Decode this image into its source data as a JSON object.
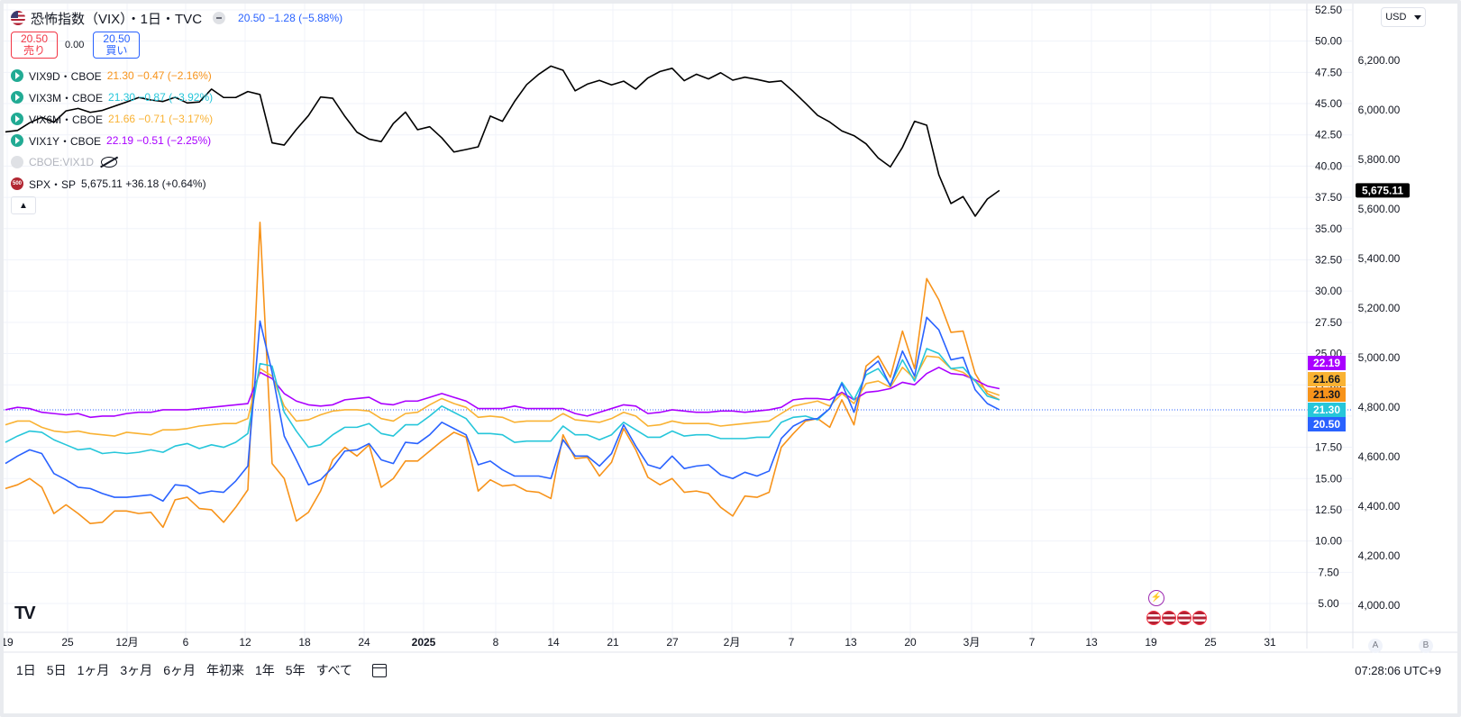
{
  "header": {
    "title": "恐怖指数（VIX）・1日・TVC",
    "last": "20.50",
    "change": "−1.28 (−5.88%)",
    "sell_price": "20.50",
    "sell_label": "売り",
    "spread": "0.00",
    "buy_price": "20.50",
    "buy_label": "買い"
  },
  "legend": [
    {
      "symbol": "VIX9D・CBOE",
      "value": "21.30",
      "change": "−0.47 (−2.16%)",
      "color": "#f7931a"
    },
    {
      "symbol": "VIX3M・CBOE",
      "value": "21.30",
      "change": "−0.87 (−3.92%)",
      "color": "#26c6da"
    },
    {
      "symbol": "VIX6M・CBOE",
      "value": "21.66",
      "change": "−0.71 (−3.17%)",
      "color": "#f9b233"
    },
    {
      "symbol": "VIX1Y・CBOE",
      "value": "22.19",
      "change": "−0.51 (−2.25%)",
      "color": "#aa00ff"
    }
  ],
  "hidden_series": {
    "symbol": "CBOE:VIX1D"
  },
  "spx_legend": {
    "badge": "500",
    "symbol": "SPX・SP",
    "value": "5,675.11",
    "change": "+36.18 (+0.64%)"
  },
  "currency": "USD",
  "timeframes": [
    "1日",
    "5日",
    "1ヶ月",
    "3ヶ月",
    "6ヶ月",
    "年初来",
    "1年",
    "5年",
    "すべて"
  ],
  "clock": "07:28:06 UTC+9",
  "scale_buttons": [
    "A",
    "B"
  ],
  "logo": "TV",
  "chart_data": {
    "type": "line",
    "x_tick_labels": [
      "19",
      "25",
      "12月",
      "6",
      "12",
      "18",
      "24",
      "2025",
      "8",
      "14",
      "21",
      "27",
      "2月",
      "7",
      "13",
      "20",
      "3月",
      "7",
      "13",
      "19",
      "25",
      "31"
    ],
    "right_axis": {
      "ylim": [
        4.5,
        52.5
      ],
      "ticks": [
        "52.50",
        "50.00",
        "47.50",
        "45.00",
        "42.50",
        "40.00",
        "37.50",
        "35.00",
        "32.50",
        "30.00",
        "27.50",
        "25.00",
        "22.50",
        "20.00",
        "17.50",
        "15.00",
        "12.50",
        "10.00",
        "7.50",
        "5.00"
      ]
    },
    "spx_axis": {
      "ylim": [
        3900,
        6350
      ],
      "ticks": [
        "6,200.00",
        "6,000.00",
        "5,800.00",
        "5,600.00",
        "5,400.00",
        "5,200.00",
        "5,000.00",
        "4,800.00",
        "4,600.00",
        "4,400.00",
        "4,200.00",
        "4,000.00"
      ],
      "last_label": "5,675.11"
    },
    "badges": [
      {
        "label": "22.19",
        "value": 22.19,
        "color": "#aa00ff"
      },
      {
        "label": "21.66",
        "value": 21.66,
        "color": "#f9b233"
      },
      {
        "label": "21.30",
        "value": 21.3,
        "color": "#f7931a"
      },
      {
        "label": "21.30",
        "value": 21.3,
        "color": "#26c6da"
      },
      {
        "label": "20.50",
        "value": 20.5,
        "color": "#2962ff"
      }
    ],
    "series": [
      {
        "key": "VIX9D",
        "color": "#f7931a",
        "values": [
          14.2,
          14.5,
          15.0,
          14.3,
          12.2,
          12.9,
          12.2,
          11.4,
          11.5,
          12.4,
          12.4,
          12.2,
          12.3,
          11.1,
          13.3,
          13.5,
          12.6,
          12.5,
          11.5,
          12.7,
          14.1,
          35.5,
          16.2,
          15.0,
          11.6,
          12.3,
          14.0,
          16.5,
          17.5,
          16.8,
          17.7,
          14.3,
          15.0,
          16.4,
          16.4,
          17.2,
          18.0,
          18.7,
          18.3,
          14.0,
          14.9,
          14.4,
          14.5,
          14.0,
          13.9,
          13.4,
          18.5,
          16.6,
          16.7,
          15.2,
          16.3,
          19.0,
          17.3,
          15.1,
          14.5,
          15.0,
          13.9,
          14.0,
          13.8,
          12.7,
          12.0,
          13.6,
          13.5,
          13.9,
          17.5,
          18.6,
          19.6,
          19.8,
          19.1,
          21.3,
          19.3,
          24.0,
          24.8,
          23.1,
          26.8,
          23.8,
          31.0,
          29.3,
          26.7,
          26.8,
          23.4,
          21.8,
          21.3
        ]
      },
      {
        "key": "VIX1Y",
        "color": "#aa00ff",
        "values": [
          20.5,
          20.7,
          20.6,
          20.3,
          20.2,
          20.1,
          20.2,
          19.9,
          20.0,
          20.0,
          20.2,
          20.3,
          20.3,
          20.5,
          20.5,
          20.5,
          20.6,
          20.7,
          20.8,
          20.9,
          21.0,
          23.5,
          23.0,
          21.8,
          21.2,
          20.9,
          20.8,
          20.9,
          21.3,
          21.4,
          21.5,
          21.0,
          20.9,
          21.2,
          21.2,
          21.5,
          21.8,
          21.5,
          21.2,
          20.6,
          20.6,
          20.6,
          20.8,
          20.6,
          20.6,
          20.6,
          20.6,
          20.2,
          20.0,
          20.3,
          20.6,
          20.9,
          20.8,
          20.2,
          20.3,
          20.5,
          20.4,
          20.3,
          20.3,
          20.4,
          20.4,
          20.3,
          20.4,
          20.5,
          20.7,
          21.3,
          21.4,
          21.4,
          21.3,
          21.9,
          21.3,
          21.9,
          22.0,
          22.2,
          22.7,
          22.5,
          23.4,
          23.9,
          23.4,
          23.3,
          22.9,
          22.4,
          22.19
        ]
      },
      {
        "key": "VIX6M",
        "color": "#f9b233",
        "values": [
          19.3,
          19.6,
          19.6,
          19.1,
          18.8,
          18.7,
          18.8,
          18.6,
          18.5,
          18.4,
          18.7,
          18.6,
          18.5,
          18.9,
          18.9,
          19.0,
          19.2,
          19.3,
          19.4,
          19.4,
          19.8,
          23.8,
          23.2,
          20.8,
          19.6,
          19.7,
          20.1,
          20.4,
          20.5,
          20.5,
          20.4,
          19.8,
          19.6,
          20.2,
          20.3,
          20.9,
          21.4,
          21.0,
          20.7,
          19.9,
          20.0,
          19.9,
          19.5,
          19.6,
          19.6,
          19.6,
          20.2,
          19.7,
          19.6,
          19.5,
          19.8,
          20.3,
          20.0,
          19.2,
          19.3,
          19.6,
          19.4,
          19.4,
          19.4,
          19.2,
          19.3,
          19.4,
          19.5,
          19.6,
          20.2,
          20.8,
          21.0,
          21.2,
          20.8,
          21.8,
          21.0,
          22.6,
          22.8,
          22.3,
          23.9,
          23.0,
          24.8,
          24.7,
          23.8,
          23.5,
          22.8,
          22.0,
          21.66
        ]
      },
      {
        "key": "VIX3M",
        "color": "#26c6da",
        "values": [
          17.9,
          18.4,
          18.8,
          18.7,
          18.1,
          17.7,
          17.3,
          17.4,
          17.0,
          17.1,
          17.0,
          17.1,
          17.3,
          17.1,
          17.6,
          17.8,
          17.4,
          17.7,
          17.5,
          17.9,
          18.6,
          24.2,
          24.0,
          20.3,
          18.8,
          17.5,
          17.7,
          18.5,
          19.1,
          19.1,
          19.4,
          18.6,
          18.4,
          19.3,
          19.3,
          20.0,
          20.8,
          20.3,
          19.8,
          18.6,
          18.6,
          18.5,
          17.9,
          18.0,
          18.0,
          18.0,
          19.2,
          18.5,
          18.5,
          18.1,
          18.5,
          19.5,
          18.9,
          18.3,
          18.3,
          18.8,
          18.4,
          18.5,
          18.5,
          18.2,
          18.2,
          18.2,
          18.3,
          18.3,
          19.5,
          19.9,
          20.0,
          19.7,
          20.6,
          22.7,
          21.3,
          23.3,
          23.8,
          22.5,
          24.5,
          22.8,
          25.4,
          25.0,
          23.8,
          23.9,
          22.8,
          21.6,
          21.3
        ]
      },
      {
        "key": "VIX",
        "color": "#2962ff",
        "values": [
          16.2,
          16.8,
          17.3,
          17.0,
          15.4,
          14.9,
          14.3,
          14.2,
          13.8,
          13.5,
          13.5,
          13.6,
          13.7,
          13.2,
          14.5,
          14.4,
          13.8,
          14.0,
          13.9,
          14.8,
          16.0,
          27.6,
          23.5,
          18.4,
          16.5,
          14.5,
          14.9,
          15.9,
          17.2,
          17.3,
          17.8,
          16.5,
          16.2,
          17.9,
          17.8,
          18.5,
          19.5,
          19.0,
          18.5,
          16.1,
          16.4,
          15.7,
          15.2,
          15.2,
          15.2,
          15.0,
          18.1,
          16.8,
          16.8,
          16.0,
          17.0,
          19.3,
          17.6,
          16.1,
          15.8,
          16.8,
          15.8,
          16.0,
          16.1,
          15.3,
          15.0,
          15.5,
          15.2,
          15.6,
          18.2,
          19.2,
          19.7,
          19.8,
          20.6,
          22.6,
          20.3,
          23.6,
          24.4,
          22.4,
          25.2,
          23.2,
          27.9,
          26.9,
          24.5,
          24.7,
          22.1,
          21.0,
          20.5
        ]
      }
    ],
    "spx": {
      "key": "SPX",
      "color": "#000000",
      "values": [
        5911,
        5917,
        5948,
        5970,
        5950,
        5996,
        6006,
        5990,
        5998,
        6015,
        6032,
        6050,
        6040,
        6034,
        6051,
        6028,
        6032,
        6084,
        6050,
        6050,
        6074,
        6062,
        5867,
        5858,
        5921,
        5977,
        6052,
        6047,
        5974,
        5910,
        5882,
        5872,
        5945,
        5991,
        5920,
        5932,
        5887,
        5830,
        5840,
        5851,
        5975,
        5954,
        6034,
        6102,
        6144,
        6177,
        6160,
        6077,
        6104,
        6119,
        6101,
        6116,
        6084,
        6129,
        6155,
        6168,
        6118,
        6144,
        6125,
        6150,
        6120,
        6132,
        6123,
        6112,
        6117,
        6074,
        6027,
        5978,
        5951,
        5915,
        5896,
        5863,
        5806,
        5770,
        5849,
        5954,
        5938,
        5738,
        5622,
        5650,
        5571,
        5640,
        5675.11
      ]
    }
  }
}
